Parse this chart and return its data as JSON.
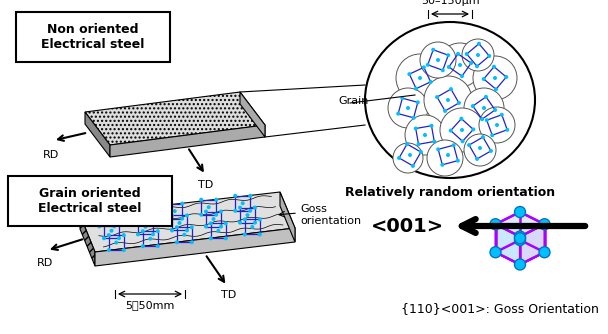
{
  "bg_color": "#ffffff",
  "text_color": "#000000",
  "cyan_color": "#00BFFF",
  "blue_color": "#2222CC",
  "purple_color": "#AA00FF",
  "plate_top": "#DDDDDD",
  "plate_side": "#AAAAAA",
  "plate_dark": "#888888",
  "label_non_oriented": "Non oriented\nElectrical steel",
  "label_grain_oriented": "Grain oriented\nElectrical steel",
  "label_rd": "RD",
  "label_td": "TD",
  "label_grain": "Grain",
  "label_size_top": "50–150μm",
  "label_random": "Relatively random orientation",
  "label_goss_orient": "Goss\norientation",
  "label_size_bottom": "5～50mm",
  "label_001": "<001>",
  "label_goss_full": "{110}<001>: Goss Orientation",
  "figsize": [
    6.08,
    3.34
  ],
  "dpi": 100
}
